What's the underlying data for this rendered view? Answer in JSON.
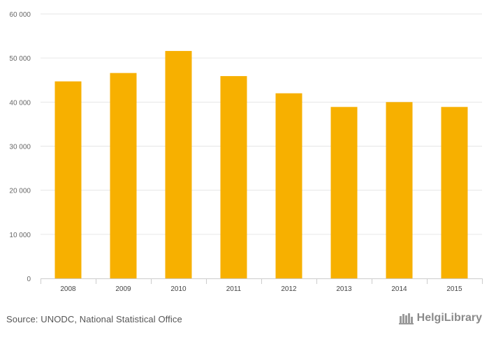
{
  "chart_data": {
    "type": "bar",
    "categories": [
      "2008",
      "2009",
      "2010",
      "2011",
      "2012",
      "2013",
      "2014",
      "2015"
    ],
    "values": [
      44700,
      46600,
      51600,
      45900,
      42000,
      38900,
      40000,
      38900
    ],
    "ylim": [
      0,
      60000
    ],
    "yticks": [
      0,
      10000,
      20000,
      30000,
      40000,
      50000,
      60000
    ],
    "ytick_labels": [
      "0",
      "10 000",
      "20 000",
      "30 000",
      "40 000",
      "50 000",
      "60 000"
    ],
    "grid": true,
    "bar_color": "#F7B000"
  },
  "footer": {
    "source": "Source: UNODC, National Statistical Office",
    "brand": "HelgiLibrary"
  }
}
